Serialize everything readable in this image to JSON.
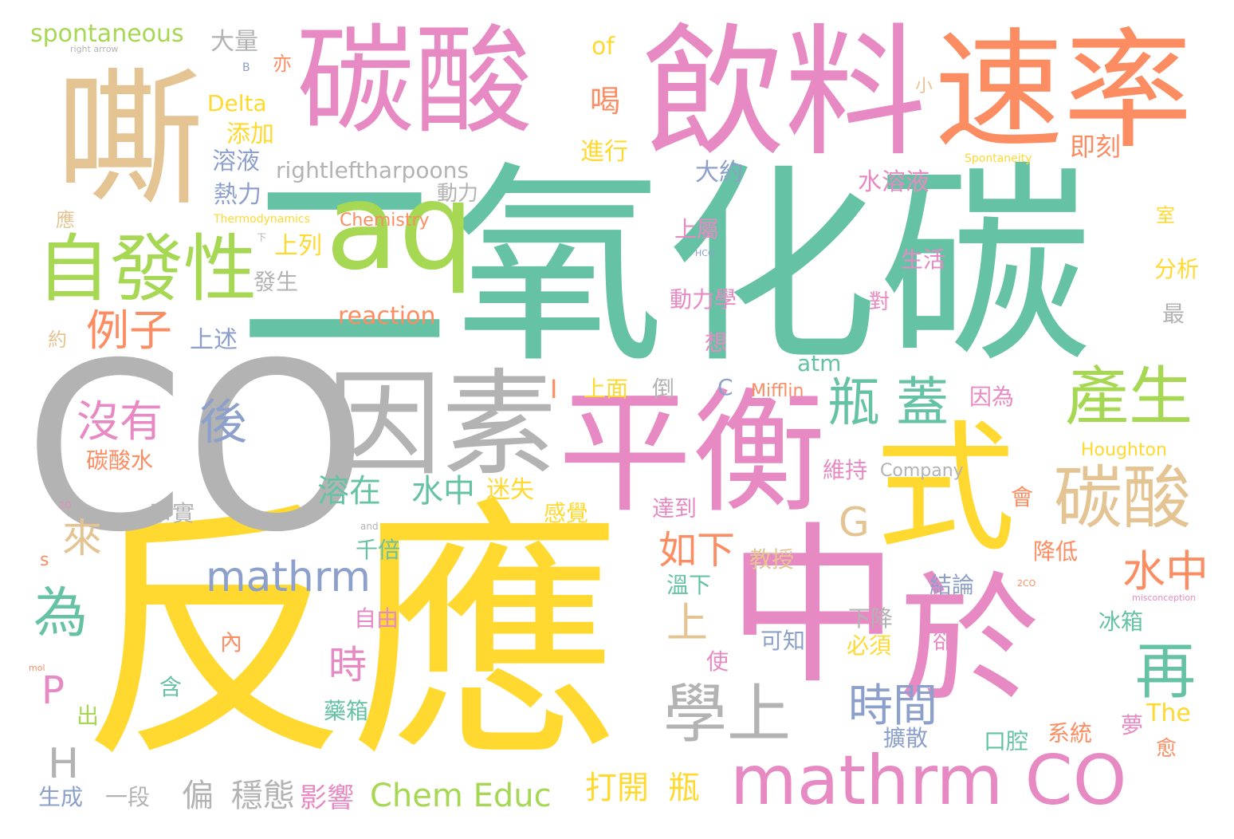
{
  "colors": {
    "green": "#66c2a5",
    "orange": "#fc8d62",
    "blue": "#8da0cb",
    "pink": "#e78ac3",
    "lime": "#a6d854",
    "yellow": "#ffd92f",
    "tan": "#e5c494",
    "gray": "#b3b3b3"
  },
  "words": [
    {
      "text": "二氧化碳",
      "color": "green"
    },
    {
      "text": "反應",
      "color": "yellow"
    },
    {
      "text": "CO",
      "color": "gray"
    },
    {
      "text": "中",
      "color": "pink"
    },
    {
      "text": "於",
      "color": "pink"
    },
    {
      "text": "式",
      "color": "yellow"
    },
    {
      "text": "平衡",
      "color": "pink"
    },
    {
      "text": "因素",
      "color": "gray"
    },
    {
      "text": "aq",
      "color": "lime"
    },
    {
      "text": "嘶",
      "color": "tan"
    },
    {
      "text": "碳酸",
      "color": "pink"
    },
    {
      "text": "飲料",
      "color": "pink"
    },
    {
      "text": "速率",
      "color": "orange"
    },
    {
      "text": "mathrm CO",
      "color": "pink"
    },
    {
      "text": "學上",
      "color": "gray"
    },
    {
      "text": "自發性",
      "color": "lime"
    },
    {
      "text": "碳酸",
      "color": "tan"
    },
    {
      "text": "產生",
      "color": "lime"
    },
    {
      "text": "瓶",
      "color": "green"
    },
    {
      "text": "蓋",
      "color": "green"
    },
    {
      "text": "mathrm",
      "color": "blue"
    },
    {
      "text": "為",
      "color": "green"
    },
    {
      "text": "再",
      "color": "green"
    },
    {
      "text": "時間",
      "color": "blue"
    },
    {
      "text": "水中",
      "color": "orange"
    },
    {
      "text": "如下",
      "color": "orange"
    },
    {
      "text": "Chem Educ",
      "color": "lime"
    },
    {
      "text": "沒有",
      "color": "pink"
    },
    {
      "text": "後",
      "color": "blue"
    },
    {
      "text": "例子",
      "color": "orange"
    },
    {
      "text": "來",
      "color": "tan"
    },
    {
      "text": "H",
      "color": "gray"
    },
    {
      "text": "P",
      "color": "pink"
    },
    {
      "text": "G",
      "color": "tan"
    },
    {
      "text": "上",
      "color": "tan"
    },
    {
      "text": "時",
      "color": "pink"
    },
    {
      "text": "溶在",
      "color": "green"
    },
    {
      "text": "水中",
      "color": "green"
    },
    {
      "text": "rightleftharpoons",
      "color": "gray"
    },
    {
      "text": "spontaneous",
      "color": "lime"
    },
    {
      "text": "reaction",
      "color": "orange"
    },
    {
      "text": "喝",
      "color": "orange"
    },
    {
      "text": "of",
      "color": "yellow"
    },
    {
      "text": "打開",
      "color": "yellow"
    },
    {
      "text": "瓶",
      "color": "yellow"
    },
    {
      "text": "偏",
      "color": "gray"
    },
    {
      "text": "穩態",
      "color": "gray"
    },
    {
      "text": "影響",
      "color": "pink"
    },
    {
      "text": "大量",
      "color": "gray"
    },
    {
      "text": "Delta",
      "color": "yellow"
    },
    {
      "text": "添加",
      "color": "yellow"
    },
    {
      "text": "溶液",
      "color": "blue"
    },
    {
      "text": "熱力",
      "color": "blue"
    },
    {
      "text": "動力",
      "color": "gray"
    },
    {
      "text": "大約",
      "color": "blue"
    },
    {
      "text": "水溶液",
      "color": "pink"
    },
    {
      "text": "上屬",
      "color": "pink"
    },
    {
      "text": "生活",
      "color": "pink"
    },
    {
      "text": "動力學",
      "color": "pink"
    },
    {
      "text": "即刻",
      "color": "orange"
    },
    {
      "text": "進行",
      "color": "yellow"
    },
    {
      "text": "Chemistry",
      "color": "orange"
    },
    {
      "text": "上列",
      "color": "yellow"
    },
    {
      "text": "發生",
      "color": "gray"
    },
    {
      "text": "上述",
      "color": "blue"
    },
    {
      "text": "分析",
      "color": "yellow"
    },
    {
      "text": "最",
      "color": "gray"
    },
    {
      "text": "atm",
      "color": "green"
    },
    {
      "text": "上面",
      "color": "yellow"
    },
    {
      "text": "倒",
      "color": "gray"
    },
    {
      "text": "Mifflin",
      "color": "orange"
    },
    {
      "text": "因為",
      "color": "pink"
    },
    {
      "text": "維持",
      "color": "pink"
    },
    {
      "text": "迷失",
      "color": "yellow"
    },
    {
      "text": "事實",
      "color": "gray"
    },
    {
      "text": "碳酸水",
      "color": "orange"
    },
    {
      "text": "達到",
      "color": "pink"
    },
    {
      "text": "Houghton",
      "color": "yellow"
    },
    {
      "text": "Company",
      "color": "gray"
    },
    {
      "text": "會",
      "color": "orange"
    },
    {
      "text": "感覺",
      "color": "yellow"
    },
    {
      "text": "千倍",
      "color": "green"
    },
    {
      "text": "教授",
      "color": "tan"
    },
    {
      "text": "降低",
      "color": "orange"
    },
    {
      "text": "溫下",
      "color": "green"
    },
    {
      "text": "結論",
      "color": "blue"
    },
    {
      "text": "自由",
      "color": "pink"
    },
    {
      "text": "下降",
      "color": "gray"
    },
    {
      "text": "冰箱",
      "color": "green"
    },
    {
      "text": "內",
      "color": "orange"
    },
    {
      "text": "使",
      "color": "pink"
    },
    {
      "text": "可知",
      "color": "blue"
    },
    {
      "text": "必須",
      "color": "yellow"
    },
    {
      "text": "卻",
      "color": "pink"
    },
    {
      "text": "含",
      "color": "green"
    },
    {
      "text": "出",
      "color": "lime"
    },
    {
      "text": "藥箱",
      "color": "green"
    },
    {
      "text": "擴散",
      "color": "blue"
    },
    {
      "text": "口腔",
      "color": "green"
    },
    {
      "text": "系統",
      "color": "orange"
    },
    {
      "text": "夢",
      "color": "pink"
    },
    {
      "text": "The",
      "color": "yellow"
    },
    {
      "text": "愈",
      "color": "orange"
    },
    {
      "text": "生成",
      "color": "blue"
    },
    {
      "text": "一段",
      "color": "gray"
    },
    {
      "text": "小",
      "color": "tan"
    },
    {
      "text": "對",
      "color": "pink"
    },
    {
      "text": "想",
      "color": "pink"
    },
    {
      "text": "室",
      "color": "yellow"
    },
    {
      "text": "C",
      "color": "blue"
    },
    {
      "text": "亦",
      "color": "orange"
    },
    {
      "text": "約",
      "color": "tan"
    },
    {
      "text": "應",
      "color": "tan"
    },
    {
      "text": "s",
      "color": "orange"
    },
    {
      "text": "Spontaneity",
      "color": "yellow"
    },
    {
      "text": "Thermodynamics",
      "color": "yellow"
    },
    {
      "text": "misconception",
      "color": "pink"
    },
    {
      "text": "right arrow",
      "color": "gray"
    },
    {
      "text": "and",
      "color": "gray"
    },
    {
      "text": "HCO",
      "color": "blue"
    },
    {
      "text": "2CO",
      "color": "orange"
    },
    {
      "text": "2O",
      "color": "pink"
    },
    {
      "text": "mol",
      "color": "orange"
    },
    {
      "text": "B",
      "color": "blue"
    },
    {
      "text": "下",
      "color": "gray"
    },
    {
      "text": "I",
      "color": "orange"
    }
  ]
}
